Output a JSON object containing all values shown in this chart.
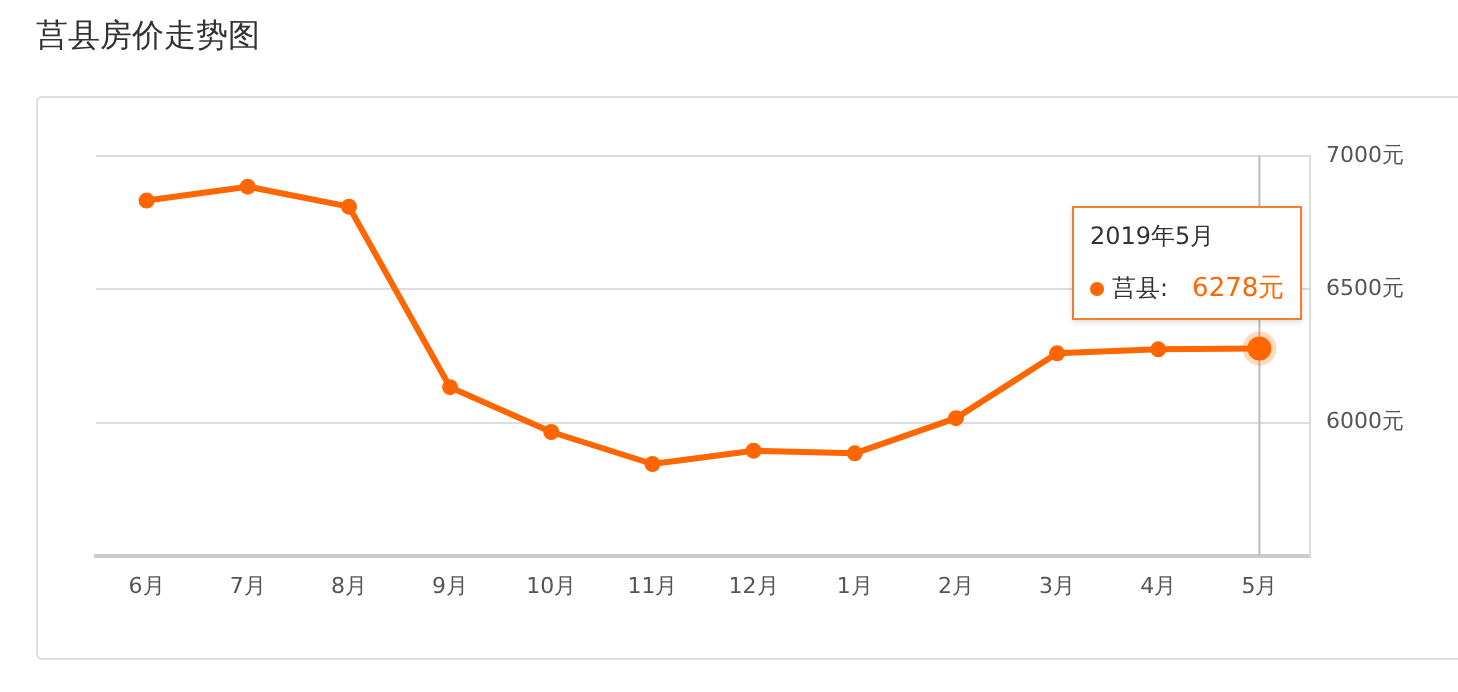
{
  "chart_data": {
    "type": "line",
    "title": "莒县房价走势图",
    "categories": [
      "6月",
      "7月",
      "8月",
      "9月",
      "10月",
      "11月",
      "12月",
      "1月",
      "2月",
      "3月",
      "4月",
      "5月"
    ],
    "series": [
      {
        "name": "莒县:",
        "color": "#ff6600",
        "values": [
          6833,
          6885,
          6810,
          6133,
          5965,
          5845,
          5895,
          5885,
          6017,
          6260,
          6275,
          6278
        ],
        "value_labels": [
          null,
          null,
          null,
          null,
          null,
          null,
          null,
          null,
          null,
          null,
          null,
          "6278元"
        ]
      }
    ],
    "ylim": [
      5500,
      7000
    ],
    "yticks": [
      {
        "value": 5500,
        "label": null
      },
      {
        "value": 6000,
        "label": "6000元"
      },
      {
        "value": 6500,
        "label": "6500元"
      },
      {
        "value": 7000,
        "label": "7000元"
      }
    ],
    "grid": "y",
    "marker": "circle",
    "line_style": "solid",
    "legend": "top right",
    "annotations": [
      "2019年5月"
    ],
    "ref_lines": [
      {
        "axis": "x",
        "value": "5月",
        "color": "#bbbbbb"
      }
    ]
  }
}
